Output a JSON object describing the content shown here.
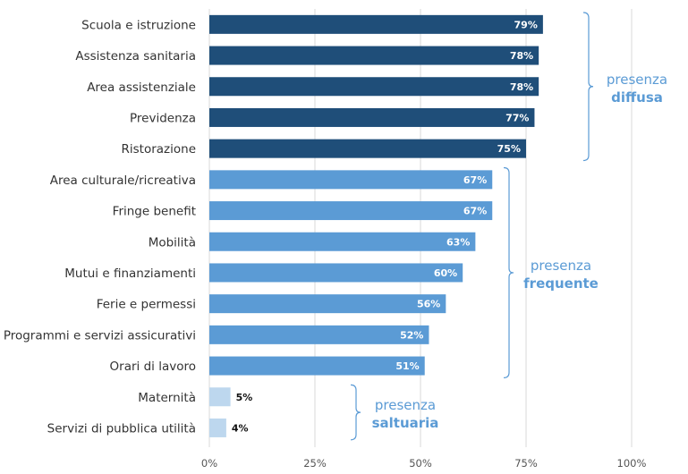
{
  "chart_data": {
    "type": "bar",
    "orientation": "horizontal",
    "categories": [
      "Scuola e istruzione",
      "Assistenza sanitaria",
      "Area assistenziale",
      "Previdenza",
      "Ristorazione",
      "Area culturale/ricreativa",
      "Fringe benefit",
      "Mobilità",
      "Mutui e finanziamenti",
      "Ferie e permessi",
      "Programmi e servizi assicurativi",
      "Orari di lavoro",
      "Maternità",
      "Servizi di pubblica utilità"
    ],
    "values": [
      79,
      78,
      78,
      77,
      75,
      67,
      67,
      63,
      60,
      56,
      52,
      51,
      5,
      4
    ],
    "value_labels": [
      "79%",
      "78%",
      "78%",
      "77%",
      "75%",
      "67%",
      "67%",
      "63%",
      "60%",
      "56%",
      "52%",
      "51%",
      "5%",
      "4%"
    ],
    "xlim": [
      0,
      100
    ],
    "x_ticks": [
      0,
      25,
      50,
      75,
      100
    ],
    "x_tick_labels": [
      "0%",
      "25%",
      "50%",
      "75%",
      "100%"
    ],
    "grid": "vertical",
    "groups": [
      {
        "label_top": "presenza",
        "label_bottom": "diffusa",
        "start": 0,
        "end": 4,
        "color": "#1f4e79",
        "label_color": "#5b9bd5"
      },
      {
        "label_top": "presenza",
        "label_bottom": "frequente",
        "start": 5,
        "end": 11,
        "color": "#5b9bd5",
        "label_color": "#5b9bd5"
      },
      {
        "label_top": "presenza",
        "label_bottom": "saltuaria",
        "start": 12,
        "end": 13,
        "color": "#bdd7ee",
        "label_color": "#5b9bd5"
      }
    ]
  }
}
